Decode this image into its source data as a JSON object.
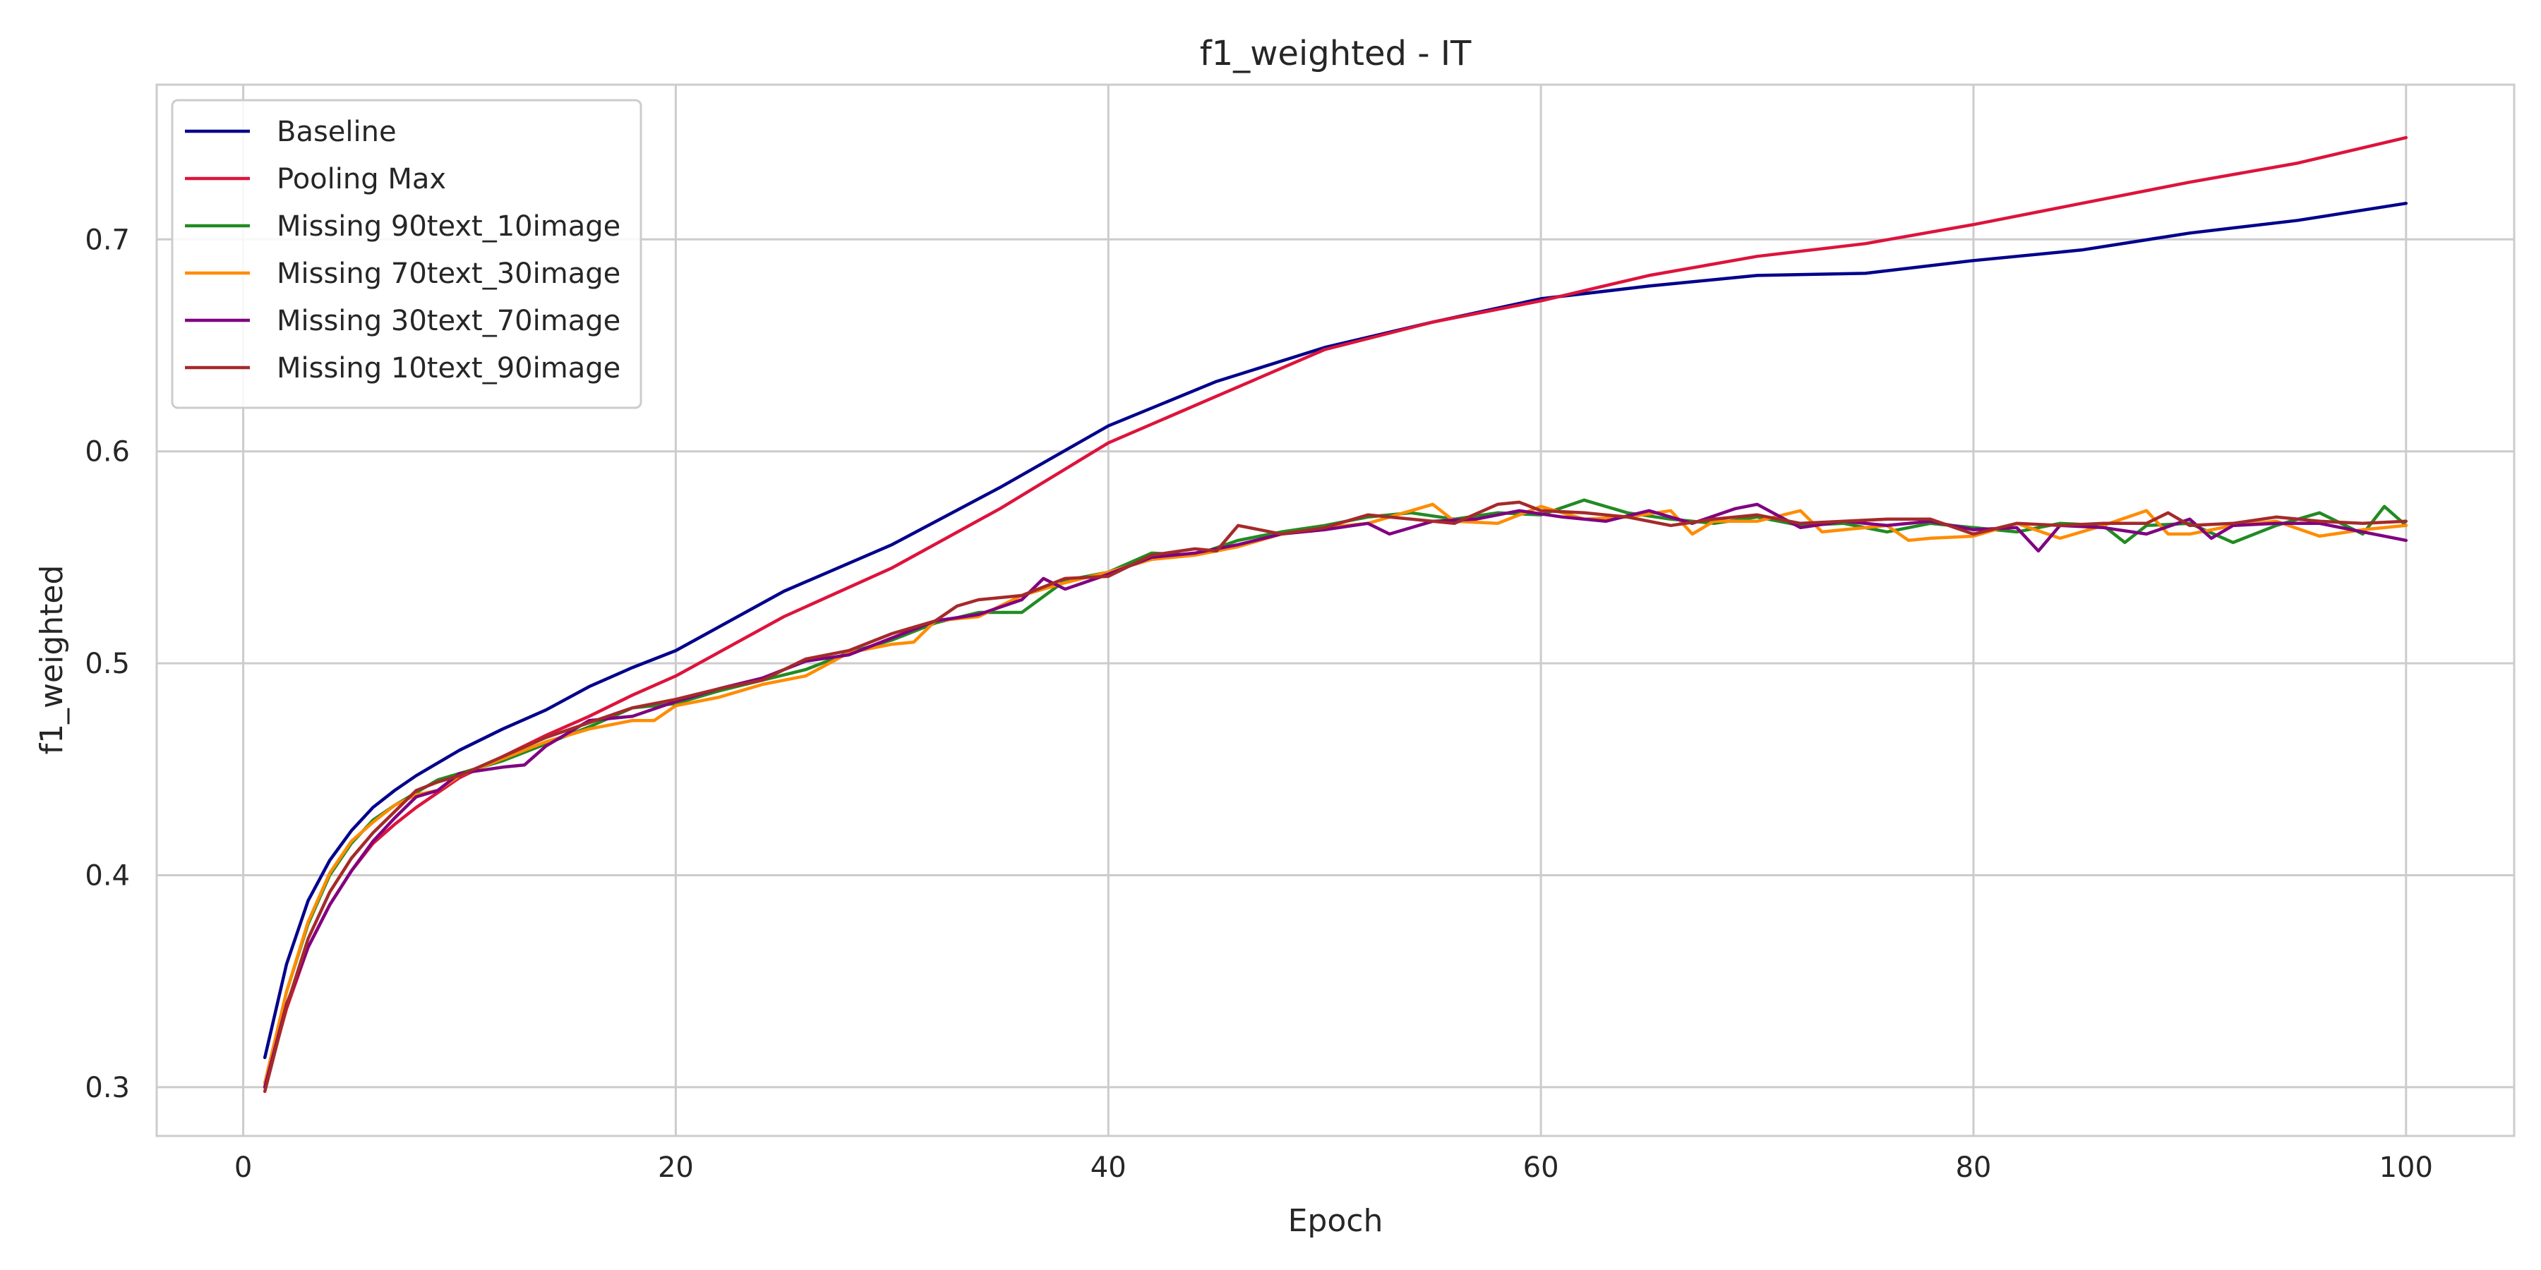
{
  "chart_data": {
    "type": "line",
    "title": "f1_weighted - IT",
    "xlabel": "Epoch",
    "ylabel": "f1_weighted",
    "xlim": [
      -4,
      105
    ],
    "ylim": [
      0.277,
      0.773
    ],
    "xticks": [
      0,
      20,
      40,
      60,
      80,
      100
    ],
    "yticks": [
      0.3,
      0.4,
      0.5,
      0.6,
      0.7
    ],
    "xtick_labels": [
      "0",
      "20",
      "40",
      "60",
      "80",
      "100"
    ],
    "ytick_labels": [
      "0.3",
      "0.4",
      "0.5",
      "0.6",
      "0.7"
    ],
    "grid": true,
    "legend_position": "upper-left",
    "series": [
      {
        "name": "Baseline",
        "color": "#00008b",
        "x": [
          1,
          2,
          3,
          4,
          5,
          6,
          7,
          8,
          9,
          10,
          12,
          14,
          16,
          18,
          20,
          25,
          30,
          35,
          40,
          45,
          50,
          55,
          60,
          65,
          70,
          75,
          80,
          85,
          90,
          95,
          100
        ],
        "y": [
          0.314,
          0.358,
          0.388,
          0.407,
          0.421,
          0.432,
          0.44,
          0.447,
          0.453,
          0.459,
          0.469,
          0.478,
          0.489,
          0.498,
          0.506,
          0.534,
          0.556,
          0.583,
          0.612,
          0.633,
          0.649,
          0.661,
          0.672,
          0.678,
          0.683,
          0.684,
          0.69,
          0.695,
          0.703,
          0.709,
          0.717
        ]
      },
      {
        "name": "Pooling Max",
        "color": "#dc143c",
        "x": [
          1,
          2,
          3,
          4,
          5,
          6,
          7,
          8,
          10,
          12,
          14,
          16,
          18,
          20,
          25,
          30,
          35,
          40,
          45,
          50,
          55,
          60,
          65,
          70,
          75,
          80,
          85,
          90,
          95,
          100
        ],
        "y": [
          0.3,
          0.337,
          0.366,
          0.386,
          0.402,
          0.415,
          0.424,
          0.432,
          0.446,
          0.456,
          0.466,
          0.475,
          0.485,
          0.494,
          0.522,
          0.545,
          0.573,
          0.604,
          0.626,
          0.648,
          0.661,
          0.671,
          0.683,
          0.692,
          0.698,
          0.707,
          0.717,
          0.727,
          0.736,
          0.748
        ]
      },
      {
        "name": "Missing 90text_10image",
        "color": "#228b22",
        "x": [
          1,
          2,
          3,
          4,
          5,
          6,
          7,
          8,
          9,
          10,
          12,
          14,
          16,
          18,
          20,
          22,
          24,
          26,
          28,
          30,
          32,
          34,
          36,
          38,
          40,
          42,
          44,
          46,
          48,
          50,
          52,
          54,
          56,
          58,
          60,
          62,
          64,
          66,
          68,
          70,
          72,
          74,
          76,
          78,
          80,
          82,
          84,
          86,
          87,
          88,
          90,
          92,
          94,
          96,
          98,
          99,
          100
        ],
        "y": [
          0.3,
          0.345,
          0.377,
          0.4,
          0.415,
          0.426,
          0.433,
          0.439,
          0.445,
          0.448,
          0.454,
          0.462,
          0.47,
          0.479,
          0.481,
          0.487,
          0.492,
          0.497,
          0.505,
          0.511,
          0.519,
          0.524,
          0.524,
          0.539,
          0.543,
          0.552,
          0.551,
          0.558,
          0.562,
          0.565,
          0.569,
          0.571,
          0.568,
          0.571,
          0.57,
          0.577,
          0.571,
          0.568,
          0.566,
          0.569,
          0.565,
          0.566,
          0.562,
          0.566,
          0.564,
          0.562,
          0.566,
          0.565,
          0.557,
          0.565,
          0.566,
          0.557,
          0.565,
          0.571,
          0.561,
          0.574,
          0.565
        ]
      },
      {
        "name": "Missing 70text_30image",
        "color": "#ff8c00",
        "x": [
          1,
          2,
          3,
          4,
          5,
          6,
          7,
          8,
          9,
          10,
          12,
          14,
          16,
          18,
          19,
          20,
          22,
          24,
          26,
          28,
          30,
          31,
          32,
          34,
          36,
          38,
          40,
          42,
          44,
          46,
          48,
          50,
          52,
          55,
          56,
          58,
          60,
          62,
          64,
          66,
          67,
          68,
          70,
          72,
          73,
          74,
          76,
          77,
          78,
          80,
          82,
          84,
          86,
          88,
          89,
          90,
          92,
          94,
          96,
          98,
          100
        ],
        "y": [
          0.302,
          0.345,
          0.378,
          0.401,
          0.416,
          0.425,
          0.433,
          0.438,
          0.44,
          0.447,
          0.455,
          0.463,
          0.469,
          0.473,
          0.473,
          0.48,
          0.484,
          0.49,
          0.494,
          0.505,
          0.509,
          0.51,
          0.52,
          0.522,
          0.532,
          0.538,
          0.543,
          0.549,
          0.551,
          0.555,
          0.561,
          0.564,
          0.566,
          0.575,
          0.567,
          0.566,
          0.574,
          0.568,
          0.569,
          0.572,
          0.561,
          0.567,
          0.567,
          0.572,
          0.562,
          0.563,
          0.565,
          0.558,
          0.559,
          0.56,
          0.566,
          0.559,
          0.565,
          0.572,
          0.561,
          0.561,
          0.565,
          0.567,
          0.56,
          0.563,
          0.565
        ]
      },
      {
        "name": "Missing 30text_70image",
        "color": "#800080",
        "x": [
          1,
          2,
          3,
          4,
          5,
          6,
          7,
          8,
          9,
          10,
          12,
          13,
          14,
          16,
          18,
          20,
          22,
          24,
          26,
          28,
          30,
          32,
          34,
          36,
          37,
          38,
          40,
          42,
          44,
          46,
          48,
          50,
          52,
          53,
          55,
          57,
          59,
          61,
          63,
          65,
          67,
          69,
          70,
          72,
          74,
          76,
          78,
          80,
          82,
          83,
          84,
          86,
          88,
          90,
          91,
          92,
          94,
          96,
          98,
          100
        ],
        "y": [
          0.3,
          0.339,
          0.366,
          0.386,
          0.402,
          0.416,
          0.427,
          0.437,
          0.44,
          0.448,
          0.451,
          0.452,
          0.461,
          0.473,
          0.475,
          0.482,
          0.488,
          0.493,
          0.501,
          0.504,
          0.512,
          0.52,
          0.523,
          0.53,
          0.54,
          0.535,
          0.542,
          0.55,
          0.552,
          0.556,
          0.561,
          0.563,
          0.566,
          0.561,
          0.567,
          0.568,
          0.572,
          0.569,
          0.567,
          0.572,
          0.566,
          0.573,
          0.575,
          0.564,
          0.567,
          0.565,
          0.567,
          0.563,
          0.564,
          0.553,
          0.565,
          0.564,
          0.561,
          0.568,
          0.559,
          0.565,
          0.566,
          0.566,
          0.562,
          0.558
        ]
      },
      {
        "name": "Missing 10text_90image",
        "color": "#a52a2a",
        "x": [
          1,
          2,
          3,
          4,
          5,
          6,
          7,
          8,
          9,
          10,
          12,
          14,
          16,
          18,
          20,
          22,
          24,
          26,
          28,
          30,
          32,
          33,
          34,
          36,
          38,
          40,
          42,
          44,
          45,
          46,
          48,
          50,
          52,
          54,
          56,
          58,
          59,
          60,
          62,
          64,
          66,
          68,
          70,
          72,
          74,
          76,
          78,
          80,
          82,
          84,
          86,
          88,
          89,
          90,
          92,
          94,
          96,
          98,
          100
        ],
        "y": [
          0.298,
          0.338,
          0.37,
          0.392,
          0.408,
          0.42,
          0.43,
          0.44,
          0.444,
          0.447,
          0.456,
          0.465,
          0.472,
          0.479,
          0.483,
          0.488,
          0.492,
          0.502,
          0.506,
          0.514,
          0.52,
          0.527,
          0.53,
          0.532,
          0.54,
          0.541,
          0.551,
          0.554,
          0.553,
          0.565,
          0.561,
          0.564,
          0.57,
          0.568,
          0.566,
          0.575,
          0.576,
          0.572,
          0.571,
          0.569,
          0.565,
          0.568,
          0.57,
          0.566,
          0.567,
          0.568,
          0.568,
          0.561,
          0.566,
          0.565,
          0.566,
          0.566,
          0.571,
          0.565,
          0.566,
          0.569,
          0.567,
          0.566,
          0.567
        ]
      }
    ]
  }
}
